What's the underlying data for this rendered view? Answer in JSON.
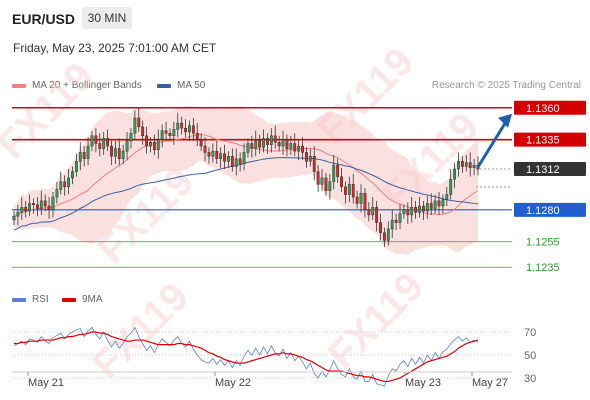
{
  "header": {
    "pair": "EUR/USD",
    "timeframe": "30 MIN",
    "datetime": "Friday, May 23, 2025 7:01:00 AM CET"
  },
  "legend": {
    "items": [
      {
        "label": "MA 20 + Bollinger Bands",
        "color": "#f08080"
      },
      {
        "label": "MA 50",
        "color": "#3a5fa0"
      }
    ],
    "copyright": "Research © 2025 Trading Central"
  },
  "rsi_legend": {
    "items": [
      {
        "label": "RSI",
        "color": "#5b7fd6"
      },
      {
        "label": "9MA",
        "color": "#e00000"
      }
    ]
  },
  "watermark": "FX119",
  "chart_data": [
    {
      "type": "candlestick",
      "x_ticks": [
        "May 21",
        "May 22",
        "May 23",
        "May 27"
      ],
      "price_range": [
        1.1225,
        1.137
      ],
      "levels": [
        {
          "value": 1.136,
          "label": "1.1360",
          "color": "#d40000",
          "style": "resistance"
        },
        {
          "value": 1.1335,
          "label": "1.1335",
          "color": "#d40000",
          "style": "resistance"
        },
        {
          "value": 1.1312,
          "label": "1.1312",
          "color": "#333333",
          "style": "current"
        },
        {
          "value": 1.128,
          "label": "1.1280",
          "color": "#1f5fd0",
          "style": "pivot"
        },
        {
          "value": 1.1255,
          "label": "1.1255",
          "color": "#2e9e2e",
          "style": "support"
        },
        {
          "value": 1.1235,
          "label": "1.1235",
          "color": "#2e9e2e",
          "style": "support"
        }
      ],
      "closes": [
        1.1275,
        1.1278,
        1.1282,
        1.1279,
        1.1285,
        1.1284,
        1.1281,
        1.1287,
        1.1283,
        1.128,
        1.129,
        1.1296,
        1.1302,
        1.1298,
        1.1305,
        1.131,
        1.1318,
        1.1325,
        1.132,
        1.133,
        1.1338,
        1.1332,
        1.1328,
        1.1336,
        1.133,
        1.1322,
        1.1328,
        1.132,
        1.1326,
        1.1334,
        1.134,
        1.1352,
        1.1345,
        1.1338,
        1.133,
        1.1333,
        1.1327,
        1.1335,
        1.1342,
        1.134,
        1.1338,
        1.1343,
        1.1348,
        1.1344,
        1.1341,
        1.1346,
        1.134,
        1.1335,
        1.133,
        1.1325,
        1.1322,
        1.1326,
        1.132,
        1.1324,
        1.1318,
        1.1322,
        1.1314,
        1.132,
        1.1316,
        1.1325,
        1.1332,
        1.1328,
        1.1334,
        1.1329,
        1.1336,
        1.1331,
        1.1338,
        1.1333,
        1.133,
        1.1335,
        1.1328,
        1.1332,
        1.1326,
        1.133,
        1.1325,
        1.1318,
        1.1322,
        1.131,
        1.13,
        1.1305,
        1.1295,
        1.1302,
        1.1315,
        1.1306,
        1.1298,
        1.1292,
        1.13,
        1.129,
        1.1285,
        1.1293,
        1.128,
        1.1276,
        1.1282,
        1.127,
        1.1262,
        1.1256,
        1.1265,
        1.1272,
        1.127,
        1.1277,
        1.128,
        1.1276,
        1.1282,
        1.1278,
        1.1283,
        1.1279,
        1.1285,
        1.1281,
        1.1287,
        1.1283,
        1.1288,
        1.1292,
        1.1304,
        1.1312,
        1.1318,
        1.1314,
        1.1317,
        1.1313,
        1.1315,
        1.1312
      ],
      "forecast": {
        "from": 1.1312,
        "to": 1.136
      },
      "rsi": {
        "range": [
          0,
          100
        ],
        "levels": [
          70,
          50,
          30
        ],
        "rsi_values": [
          58,
          60,
          62,
          59,
          64,
          63,
          61,
          66,
          62,
          60,
          65,
          67,
          69,
          64,
          68,
          70,
          72,
          73,
          66,
          71,
          74,
          68,
          64,
          70,
          63,
          57,
          62,
          56,
          60,
          66,
          69,
          74,
          66,
          60,
          54,
          58,
          52,
          59,
          64,
          61,
          58,
          63,
          66,
          60,
          57,
          62,
          55,
          50,
          46,
          44,
          43,
          47,
          42,
          46,
          41,
          45,
          39,
          45,
          41,
          49,
          54,
          50,
          56,
          50,
          57,
          51,
          58,
          52,
          49,
          55,
          47,
          52,
          45,
          49,
          44,
          38,
          43,
          34,
          30,
          36,
          31,
          37,
          45,
          38,
          33,
          31,
          38,
          31,
          29,
          36,
          27,
          27,
          33,
          25,
          24,
          23,
          32,
          38,
          36,
          42,
          45,
          40,
          47,
          42,
          48,
          43,
          50,
          45,
          52,
          47,
          53,
          55,
          60,
          63,
          66,
          62,
          65,
          61,
          63,
          61
        ],
        "ma_values": [
          60,
          60,
          61,
          61,
          62,
          62,
          62,
          63,
          63,
          63,
          63,
          64,
          65,
          65,
          66,
          66,
          67,
          68,
          68,
          69,
          70,
          70,
          69,
          69,
          68,
          66,
          65,
          64,
          63,
          62,
          62,
          63,
          63,
          63,
          62,
          61,
          60,
          59,
          59,
          59,
          59,
          59,
          60,
          60,
          59,
          59,
          58,
          57,
          56,
          54,
          52,
          51,
          49,
          48,
          46,
          45,
          44,
          43,
          43,
          43,
          44,
          45,
          46,
          47,
          48,
          49,
          50,
          51,
          51,
          52,
          51,
          51,
          50,
          49,
          48,
          46,
          45,
          43,
          41,
          39,
          37,
          36,
          36,
          36,
          36,
          35,
          34,
          33,
          32,
          32,
          31,
          31,
          30,
          29,
          28,
          27,
          27,
          28,
          29,
          30,
          32,
          34,
          36,
          38,
          40,
          42,
          44,
          45,
          46,
          47,
          48,
          49,
          51,
          53,
          56,
          58,
          60,
          61,
          62,
          63
        ]
      }
    }
  ]
}
